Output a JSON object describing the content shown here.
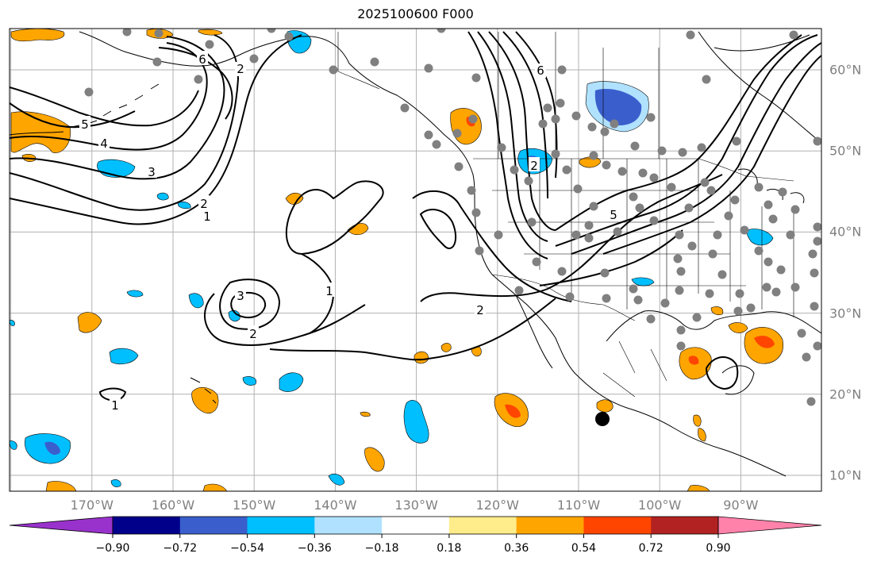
{
  "title": "2025100600 F000",
  "map": {
    "lon_labels": [
      {
        "label": "170°W",
        "lon": -170
      },
      {
        "label": "160°W",
        "lon": -160
      },
      {
        "label": "150°W",
        "lon": -150
      },
      {
        "label": "140°W",
        "lon": -140
      },
      {
        "label": "130°W",
        "lon": -130
      },
      {
        "label": "120°W",
        "lon": -120
      },
      {
        "label": "110°W",
        "lon": -110
      },
      {
        "label": "100°W",
        "lon": -100
      },
      {
        "label": "90°W",
        "lon": -90
      }
    ],
    "lat_labels": [
      {
        "label": "60°N",
        "lat": 60
      },
      {
        "label": "50°N",
        "lat": 50
      },
      {
        "label": "40°N",
        "lat": 40
      },
      {
        "label": "30°N",
        "lat": 30
      },
      {
        "label": "20°N",
        "lat": 20
      },
      {
        "label": "10°N",
        "lat": 10
      }
    ],
    "contour_labels": [
      "1",
      "2",
      "3",
      "4",
      "5",
      "6"
    ]
  },
  "colorbar": {
    "ticks": [
      "−0.90",
      "−0.72",
      "−0.54",
      "−0.36",
      "−0.18",
      "0.18",
      "0.36",
      "0.54",
      "0.72",
      "0.90"
    ],
    "colors": [
      "#9932CC",
      "#00008B",
      "#3A5FCD",
      "#00BFFF",
      "#B0E2FF",
      "#FFFFFF",
      "#FFEC8B",
      "#FFA500",
      "#FF4500",
      "#B22222",
      "#FF82AB"
    ]
  },
  "colors": {
    "positive_mid": "#FFA500",
    "positive_high": "#FF4500",
    "negative_mid": "#00BFFF",
    "negative_high": "#3A5FCD",
    "station": "#808080",
    "grid": "#b0b0b0"
  }
}
